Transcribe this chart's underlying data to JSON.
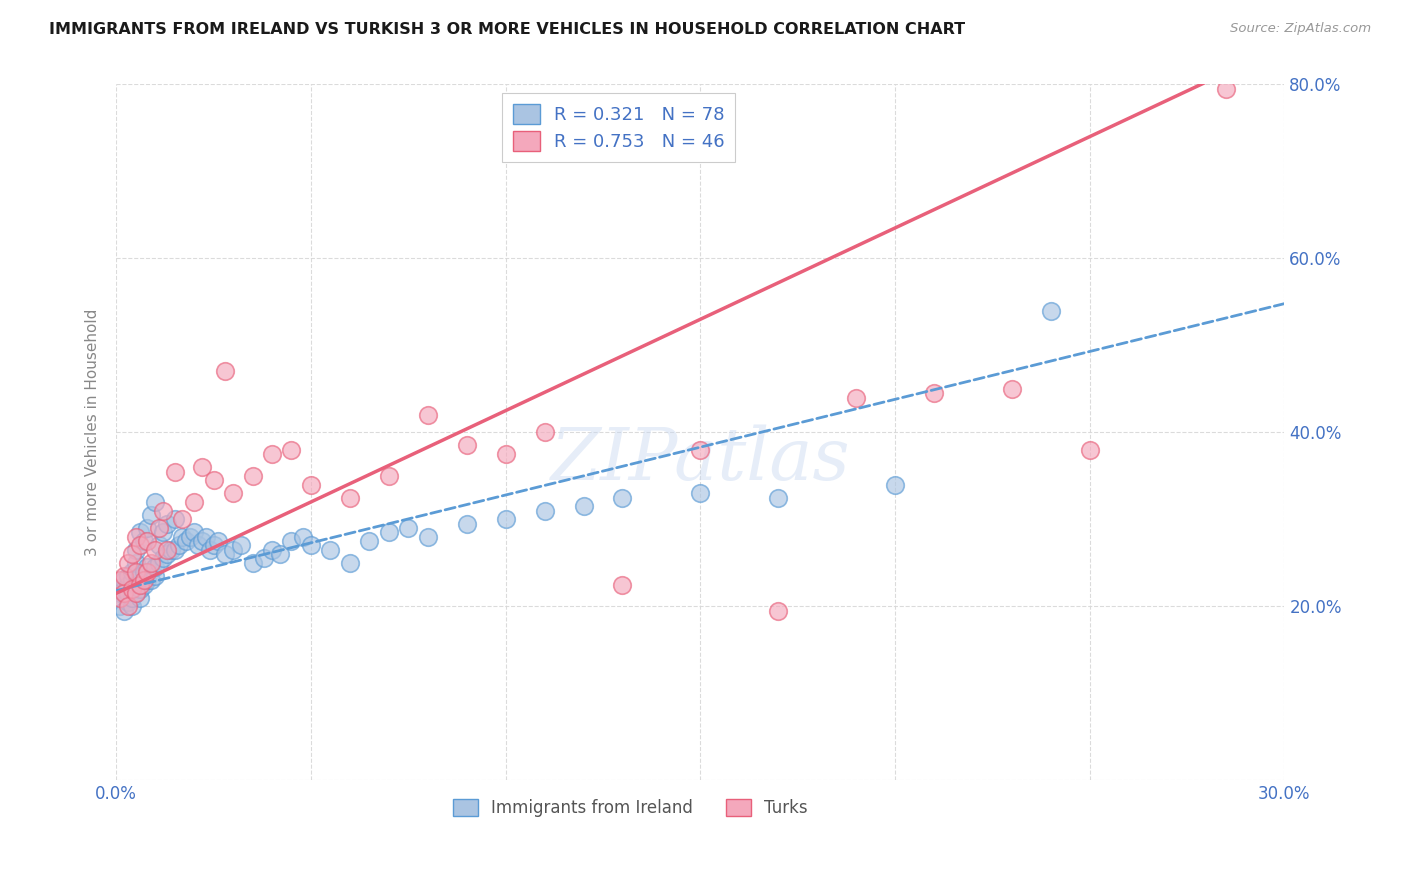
{
  "title": "IMMIGRANTS FROM IRELAND VS TURKISH 3 OR MORE VEHICLES IN HOUSEHOLD CORRELATION CHART",
  "source": "Source: ZipAtlas.com",
  "ylabel": "3 or more Vehicles in Household",
  "xlim": [
    0.0,
    0.3
  ],
  "ylim": [
    0.0,
    0.8
  ],
  "xticks": [
    0.0,
    0.05,
    0.1,
    0.15,
    0.2,
    0.25,
    0.3
  ],
  "yticks": [
    0.0,
    0.2,
    0.4,
    0.6,
    0.8
  ],
  "xticklabels": [
    "0.0%",
    "",
    "",
    "",
    "",
    "",
    "30.0%"
  ],
  "yticklabels_right": [
    "",
    "20.0%",
    "40.0%",
    "60.0%",
    "80.0%"
  ],
  "ireland_R": 0.321,
  "ireland_N": 78,
  "turks_R": 0.753,
  "turks_N": 46,
  "ireland_color": "#aac4e2",
  "turks_color": "#f4a8bc",
  "ireland_line_color": "#5b9bd5",
  "turks_line_color": "#e8607a",
  "legend_text_color": "#4472c4",
  "watermark": "ZIPatlas",
  "background_color": "#ffffff",
  "grid_color": "#d8d8d8",
  "ireland_intercept": 0.218,
  "ireland_slope": 1.1,
  "turks_intercept": 0.215,
  "turks_slope": 2.1,
  "ireland_x": [
    0.001,
    0.001,
    0.002,
    0.002,
    0.002,
    0.003,
    0.003,
    0.003,
    0.003,
    0.004,
    0.004,
    0.004,
    0.004,
    0.004,
    0.005,
    0.005,
    0.005,
    0.005,
    0.006,
    0.006,
    0.006,
    0.006,
    0.007,
    0.007,
    0.007,
    0.008,
    0.008,
    0.008,
    0.009,
    0.009,
    0.01,
    0.01,
    0.01,
    0.011,
    0.011,
    0.012,
    0.012,
    0.013,
    0.013,
    0.014,
    0.015,
    0.015,
    0.016,
    0.017,
    0.018,
    0.019,
    0.02,
    0.021,
    0.022,
    0.023,
    0.024,
    0.025,
    0.026,
    0.028,
    0.03,
    0.032,
    0.035,
    0.038,
    0.04,
    0.042,
    0.045,
    0.048,
    0.05,
    0.055,
    0.06,
    0.065,
    0.07,
    0.075,
    0.08,
    0.09,
    0.1,
    0.11,
    0.12,
    0.13,
    0.15,
    0.17,
    0.2,
    0.24
  ],
  "ireland_y": [
    0.215,
    0.2,
    0.22,
    0.195,
    0.23,
    0.205,
    0.215,
    0.225,
    0.235,
    0.2,
    0.21,
    0.22,
    0.23,
    0.24,
    0.215,
    0.225,
    0.25,
    0.265,
    0.21,
    0.22,
    0.235,
    0.285,
    0.225,
    0.24,
    0.275,
    0.23,
    0.245,
    0.29,
    0.23,
    0.305,
    0.235,
    0.245,
    0.32,
    0.25,
    0.27,
    0.255,
    0.285,
    0.26,
    0.295,
    0.265,
    0.265,
    0.3,
    0.27,
    0.28,
    0.275,
    0.28,
    0.285,
    0.27,
    0.275,
    0.28,
    0.265,
    0.27,
    0.275,
    0.26,
    0.265,
    0.27,
    0.25,
    0.255,
    0.265,
    0.26,
    0.275,
    0.28,
    0.27,
    0.265,
    0.25,
    0.275,
    0.285,
    0.29,
    0.28,
    0.295,
    0.3,
    0.31,
    0.315,
    0.325,
    0.33,
    0.325,
    0.34,
    0.54
  ],
  "turks_x": [
    0.001,
    0.001,
    0.002,
    0.002,
    0.003,
    0.003,
    0.004,
    0.004,
    0.005,
    0.005,
    0.005,
    0.006,
    0.006,
    0.007,
    0.008,
    0.008,
    0.009,
    0.01,
    0.011,
    0.012,
    0.013,
    0.015,
    0.017,
    0.02,
    0.022,
    0.025,
    0.028,
    0.03,
    0.035,
    0.04,
    0.045,
    0.05,
    0.06,
    0.07,
    0.08,
    0.09,
    0.1,
    0.11,
    0.13,
    0.15,
    0.17,
    0.19,
    0.21,
    0.23,
    0.25,
    0.285
  ],
  "turks_y": [
    0.21,
    0.23,
    0.215,
    0.235,
    0.2,
    0.25,
    0.22,
    0.26,
    0.215,
    0.24,
    0.28,
    0.225,
    0.27,
    0.23,
    0.24,
    0.275,
    0.25,
    0.265,
    0.29,
    0.31,
    0.265,
    0.355,
    0.3,
    0.32,
    0.36,
    0.345,
    0.47,
    0.33,
    0.35,
    0.375,
    0.38,
    0.34,
    0.325,
    0.35,
    0.42,
    0.385,
    0.375,
    0.4,
    0.225,
    0.38,
    0.195,
    0.44,
    0.445,
    0.45,
    0.38,
    0.795
  ]
}
